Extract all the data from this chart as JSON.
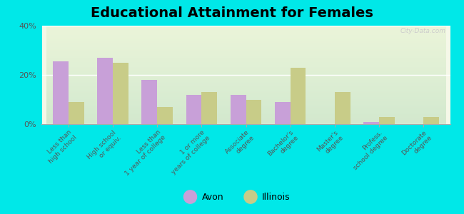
{
  "title": "Educational Attainment for Females",
  "categories": [
    "Less than\nhigh school",
    "High school\nor equiv.",
    "Less than\n1 year of college",
    "1 or more\nyears of college",
    "Associate\ndegree",
    "Bachelor's\ndegree",
    "Master's\ndegree",
    "Profess.\nschool degree",
    "Doctorate\ndegree"
  ],
  "avon_values": [
    25.5,
    27.0,
    18.0,
    12.0,
    12.0,
    9.0,
    0.0,
    1.0,
    0.0
  ],
  "illinois_values": [
    9.0,
    25.0,
    7.0,
    13.0,
    10.0,
    23.0,
    13.0,
    3.0,
    3.0
  ],
  "avon_color": "#c8a0d8",
  "illinois_color": "#c8cc88",
  "background_outer": "#00e8e8",
  "ylim": [
    0,
    40
  ],
  "yticks": [
    0,
    20,
    40
  ],
  "ytick_labels": [
    "0%",
    "20%",
    "40%"
  ],
  "bar_width": 0.35,
  "title_fontsize": 14,
  "tick_fontsize": 6.5,
  "legend_fontsize": 9
}
